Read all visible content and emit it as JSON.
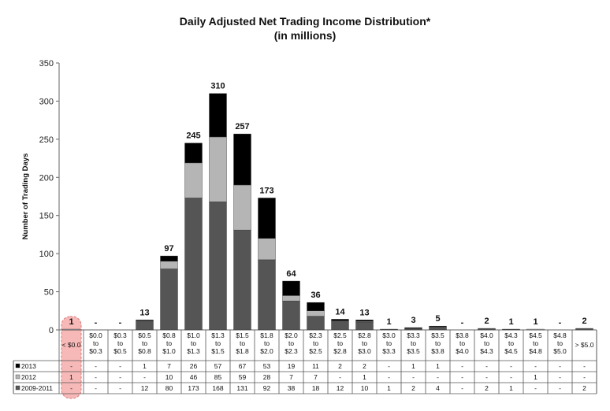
{
  "chart_data": {
    "type": "bar",
    "stacked": true,
    "title": "Daily Adjusted Net Trading Income Distribution*",
    "subtitle": "(in millions)",
    "ylabel": "Number of Trading Days",
    "ylim": [
      0,
      350
    ],
    "yticks": [
      0,
      50,
      100,
      150,
      200,
      250,
      300,
      350
    ],
    "categories": [
      [
        "< $0.0"
      ],
      [
        "$0.0",
        "to",
        "$0.3"
      ],
      [
        "$0.3",
        "to",
        "$0.5"
      ],
      [
        "$0.5",
        "to",
        "$0.8"
      ],
      [
        "$0.8",
        "to",
        "$1.0"
      ],
      [
        "$1.0",
        "to",
        "$1.3"
      ],
      [
        "$1.3",
        "to",
        "$1.5"
      ],
      [
        "$1.5",
        "to",
        "$1.8"
      ],
      [
        "$1.8",
        "to",
        "$2.0"
      ],
      [
        "$2.0",
        "to",
        "$2.3"
      ],
      [
        "$2.3",
        "to",
        "$2.5"
      ],
      [
        "$2.5",
        "to",
        "$2.8"
      ],
      [
        "$2.8",
        "to",
        "$3.0"
      ],
      [
        "$3.0",
        "to",
        "$3.3"
      ],
      [
        "$3.3",
        "to",
        "$3.5"
      ],
      [
        "$3.5",
        "to",
        "$3.8"
      ],
      [
        "$3.8",
        "to",
        "$4.0"
      ],
      [
        "$4.0",
        "to",
        "$4.3"
      ],
      [
        "$4.3",
        "to",
        "$4.5"
      ],
      [
        "$4.5",
        "to",
        "$4.8"
      ],
      [
        "$4.8",
        "to",
        "$5.0"
      ],
      [
        "> $5.0"
      ]
    ],
    "totals": [
      "1",
      "-",
      "-",
      "13",
      "97",
      "245",
      "310",
      "257",
      "173",
      "64",
      "36",
      "14",
      "13",
      "1",
      "3",
      "5",
      "-",
      "2",
      "1",
      "1",
      "-",
      "2"
    ],
    "series": [
      {
        "name": "2009-2011",
        "color": "#555555",
        "values": [
          0,
          0,
          0,
          12,
          80,
          173,
          168,
          131,
          92,
          38,
          18,
          12,
          10,
          1,
          2,
          4,
          0,
          2,
          1,
          0,
          0,
          2
        ],
        "labels": [
          "-",
          "-",
          "-",
          "12",
          "80",
          "173",
          "168",
          "131",
          "92",
          "38",
          "18",
          "12",
          "10",
          "1",
          "2",
          "4",
          "-",
          "2",
          "1",
          "-",
          "-",
          "2"
        ]
      },
      {
        "name": "2012",
        "color": "#b5b5b5",
        "values": [
          1,
          0,
          0,
          0,
          10,
          46,
          85,
          59,
          28,
          7,
          7,
          0,
          1,
          0,
          0,
          0,
          0,
          0,
          0,
          1,
          0,
          0
        ],
        "labels": [
          "1",
          "-",
          "-",
          "-",
          "10",
          "46",
          "85",
          "59",
          "28",
          "7",
          "7",
          "-",
          "1",
          "-",
          "-",
          "-",
          "-",
          "-",
          "-",
          "1",
          "-",
          "-"
        ]
      },
      {
        "name": "2013",
        "color": "#000000",
        "values": [
          0,
          0,
          0,
          1,
          7,
          26,
          57,
          67,
          53,
          19,
          11,
          2,
          2,
          0,
          1,
          1,
          0,
          0,
          0,
          0,
          0,
          0
        ],
        "labels": [
          "-",
          "-",
          "-",
          "1",
          "7",
          "26",
          "57",
          "67",
          "53",
          "19",
          "11",
          "2",
          "2",
          "-",
          "1",
          "1",
          "-",
          "-",
          "-",
          "-",
          "-",
          "-"
        ]
      }
    ],
    "table_row_order": [
      "2013",
      "2012",
      "2009-2011"
    ],
    "highlight_category": 0,
    "highlight_color": "#f7b8b8"
  }
}
